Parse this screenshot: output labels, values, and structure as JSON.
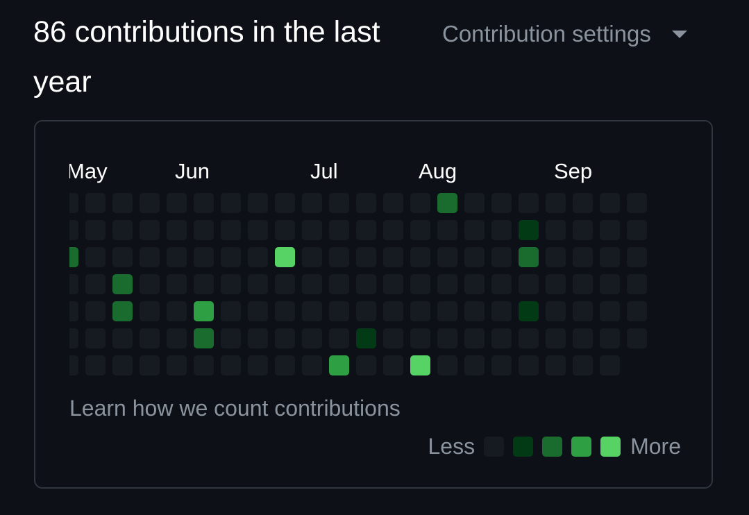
{
  "header": {
    "title": "86 contributions in the last year",
    "settings_label": "Contribution settings",
    "settings_icon": "caret-down-icon"
  },
  "graph": {
    "months": [
      {
        "label": "May",
        "week": 0
      },
      {
        "label": "Jun",
        "week": 4
      },
      {
        "label": "Jul",
        "week": 9
      },
      {
        "label": "Aug",
        "week": 13
      },
      {
        "label": "Sep",
        "week": 18
      }
    ],
    "weeks": 22,
    "last_week_days": 6,
    "levels": [
      [
        0,
        0,
        2,
        0,
        0,
        0,
        0
      ],
      [
        0,
        0,
        0,
        0,
        0,
        0,
        0
      ],
      [
        0,
        0,
        0,
        2,
        2,
        0,
        0
      ],
      [
        0,
        0,
        0,
        0,
        0,
        0,
        0
      ],
      [
        0,
        0,
        0,
        0,
        0,
        0,
        0
      ],
      [
        0,
        0,
        0,
        0,
        3,
        2,
        0
      ],
      [
        0,
        0,
        0,
        0,
        0,
        0,
        0
      ],
      [
        0,
        0,
        0,
        0,
        0,
        0,
        0
      ],
      [
        0,
        0,
        4,
        0,
        0,
        0,
        0
      ],
      [
        0,
        0,
        0,
        0,
        0,
        0,
        0
      ],
      [
        0,
        0,
        0,
        0,
        0,
        0,
        3
      ],
      [
        0,
        0,
        0,
        0,
        0,
        1,
        0
      ],
      [
        0,
        0,
        0,
        0,
        0,
        0,
        0
      ],
      [
        0,
        0,
        0,
        0,
        0,
        0,
        4
      ],
      [
        2,
        0,
        0,
        0,
        0,
        0,
        0
      ],
      [
        0,
        0,
        0,
        0,
        0,
        0,
        0
      ],
      [
        0,
        0,
        0,
        0,
        0,
        0,
        0
      ],
      [
        0,
        1,
        2,
        0,
        1,
        0,
        0
      ],
      [
        0,
        0,
        0,
        0,
        0,
        0,
        0
      ],
      [
        0,
        0,
        0,
        0,
        0,
        0,
        0
      ],
      [
        0,
        0,
        0,
        0,
        0,
        0,
        0
      ],
      [
        0,
        0,
        0,
        0,
        0,
        0,
        0
      ]
    ]
  },
  "footer": {
    "learn_link": "Learn how we count contributions",
    "legend_less": "Less",
    "legend_more": "More"
  },
  "colors": {
    "level0": "#161b22",
    "level1": "#033a16",
    "level2": "#196c2e",
    "level3": "#2ea043",
    "level4": "#56d364"
  }
}
